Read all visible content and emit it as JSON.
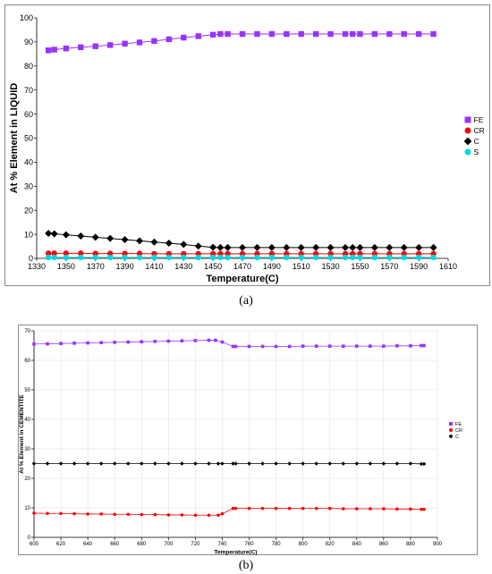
{
  "captions": [
    "(a)",
    "(b)"
  ],
  "colors": {
    "FE": "#9933ff",
    "CR": "#ff0000",
    "C": "#000000",
    "S": "#00d8e8",
    "frame": "#8a8a8a",
    "grid_b": "#e6e6e6"
  },
  "chart_data": [
    {
      "type": "line",
      "panel": "a",
      "xlabel": "Temperature(C)",
      "ylabel": "At % Element in LIQUID",
      "xlim": [
        1330,
        1610
      ],
      "ylim": [
        0,
        100
      ],
      "xticks": [
        1330,
        1350,
        1370,
        1390,
        1410,
        1430,
        1450,
        1470,
        1490,
        1510,
        1530,
        1550,
        1570,
        1590,
        1610
      ],
      "yticks": [
        0,
        10,
        20,
        30,
        40,
        50,
        60,
        70,
        80,
        90,
        100
      ],
      "legend_position": "right",
      "series": [
        {
          "name": "FE",
          "marker": "square",
          "points": [
            [
              1338,
              86.5
            ],
            [
              1342,
              86.8
            ],
            [
              1350,
              87.3
            ],
            [
              1360,
              87.8
            ],
            [
              1370,
              88.2
            ],
            [
              1380,
              88.7
            ],
            [
              1390,
              89.3
            ],
            [
              1400,
              89.8
            ],
            [
              1410,
              90.4
            ],
            [
              1420,
              91.1
            ],
            [
              1430,
              91.8
            ],
            [
              1440,
              92.4
            ],
            [
              1450,
              93.0
            ],
            [
              1455,
              93.3
            ],
            [
              1460,
              93.3
            ],
            [
              1470,
              93.3
            ],
            [
              1480,
              93.3
            ],
            [
              1490,
              93.3
            ],
            [
              1500,
              93.3
            ],
            [
              1510,
              93.3
            ],
            [
              1520,
              93.3
            ],
            [
              1530,
              93.3
            ],
            [
              1540,
              93.3
            ],
            [
              1545,
              93.3
            ],
            [
              1550,
              93.3
            ],
            [
              1560,
              93.3
            ],
            [
              1570,
              93.3
            ],
            [
              1580,
              93.3
            ],
            [
              1590,
              93.3
            ],
            [
              1600,
              93.3
            ]
          ]
        },
        {
          "name": "CR",
          "marker": "circle",
          "points": [
            [
              1338,
              2.1
            ],
            [
              1342,
              2.1
            ],
            [
              1350,
              2.1
            ],
            [
              1360,
              2.1
            ],
            [
              1370,
              2.0
            ],
            [
              1380,
              2.0
            ],
            [
              1390,
              2.0
            ],
            [
              1400,
              2.0
            ],
            [
              1410,
              1.9
            ],
            [
              1420,
              1.9
            ],
            [
              1430,
              1.9
            ],
            [
              1440,
              1.9
            ],
            [
              1450,
              1.9
            ],
            [
              1455,
              1.9
            ],
            [
              1460,
              1.9
            ],
            [
              1470,
              1.9
            ],
            [
              1480,
              1.9
            ],
            [
              1490,
              1.9
            ],
            [
              1500,
              1.9
            ],
            [
              1510,
              1.9
            ],
            [
              1520,
              1.9
            ],
            [
              1530,
              1.9
            ],
            [
              1540,
              1.9
            ],
            [
              1545,
              1.9
            ],
            [
              1550,
              1.9
            ],
            [
              1560,
              1.9
            ],
            [
              1570,
              1.9
            ],
            [
              1580,
              1.9
            ],
            [
              1590,
              1.9
            ],
            [
              1600,
              1.9
            ]
          ]
        },
        {
          "name": "C",
          "marker": "diamond",
          "points": [
            [
              1338,
              10.4
            ],
            [
              1342,
              10.2
            ],
            [
              1350,
              9.8
            ],
            [
              1360,
              9.3
            ],
            [
              1370,
              8.8
            ],
            [
              1380,
              8.3
            ],
            [
              1390,
              7.8
            ],
            [
              1400,
              7.3
            ],
            [
              1410,
              6.8
            ],
            [
              1420,
              6.3
            ],
            [
              1430,
              5.8
            ],
            [
              1440,
              5.1
            ],
            [
              1450,
              4.6
            ],
            [
              1455,
              4.5
            ],
            [
              1460,
              4.5
            ],
            [
              1470,
              4.5
            ],
            [
              1480,
              4.5
            ],
            [
              1490,
              4.5
            ],
            [
              1500,
              4.5
            ],
            [
              1510,
              4.5
            ],
            [
              1520,
              4.5
            ],
            [
              1530,
              4.5
            ],
            [
              1540,
              4.5
            ],
            [
              1545,
              4.5
            ],
            [
              1550,
              4.5
            ],
            [
              1560,
              4.5
            ],
            [
              1570,
              4.5
            ],
            [
              1580,
              4.5
            ],
            [
              1590,
              4.5
            ],
            [
              1600,
              4.5
            ]
          ]
        },
        {
          "name": "S",
          "marker": "circle",
          "points": [
            [
              1338,
              0.4
            ],
            [
              1342,
              0.4
            ],
            [
              1350,
              0.4
            ],
            [
              1360,
              0.4
            ],
            [
              1370,
              0.4
            ],
            [
              1380,
              0.4
            ],
            [
              1390,
              0.4
            ],
            [
              1400,
              0.4
            ],
            [
              1410,
              0.4
            ],
            [
              1420,
              0.4
            ],
            [
              1430,
              0.4
            ],
            [
              1440,
              0.4
            ],
            [
              1450,
              0.4
            ],
            [
              1455,
              0.4
            ],
            [
              1460,
              0.4
            ],
            [
              1470,
              0.4
            ],
            [
              1480,
              0.4
            ],
            [
              1490,
              0.4
            ],
            [
              1500,
              0.4
            ],
            [
              1510,
              0.4
            ],
            [
              1520,
              0.4
            ],
            [
              1530,
              0.4
            ],
            [
              1540,
              0.4
            ],
            [
              1545,
              0.4
            ],
            [
              1550,
              0.4
            ],
            [
              1560,
              0.4
            ],
            [
              1570,
              0.4
            ],
            [
              1580,
              0.4
            ],
            [
              1590,
              0.4
            ],
            [
              1600,
              0.4
            ]
          ]
        }
      ]
    },
    {
      "type": "line",
      "panel": "b",
      "xlabel": "Temperature(C)",
      "ylabel": "At % Element in CEMENTITE",
      "xlim": [
        600,
        900
      ],
      "ylim": [
        0,
        70
      ],
      "xticks": [
        600,
        620,
        640,
        660,
        680,
        700,
        720,
        740,
        760,
        780,
        800,
        820,
        840,
        860,
        880,
        900
      ],
      "yticks": [
        0,
        10,
        20,
        30,
        40,
        50,
        60,
        70
      ],
      "grid": true,
      "legend_position": "right",
      "series": [
        {
          "name": "FE",
          "marker": "square",
          "points": [
            [
              600,
              65.5
            ],
            [
              610,
              65.6
            ],
            [
              620,
              65.7
            ],
            [
              630,
              65.8
            ],
            [
              640,
              65.9
            ],
            [
              650,
              66.0
            ],
            [
              660,
              66.1
            ],
            [
              670,
              66.2
            ],
            [
              680,
              66.3
            ],
            [
              690,
              66.4
            ],
            [
              700,
              66.5
            ],
            [
              710,
              66.6
            ],
            [
              720,
              66.7
            ],
            [
              730,
              66.8
            ],
            [
              735,
              66.8
            ],
            [
              740,
              66.2
            ],
            [
              748,
              64.7
            ],
            [
              750,
              64.7
            ],
            [
              760,
              64.7
            ],
            [
              770,
              64.7
            ],
            [
              780,
              64.7
            ],
            [
              790,
              64.7
            ],
            [
              800,
              64.8
            ],
            [
              810,
              64.8
            ],
            [
              820,
              64.8
            ],
            [
              830,
              64.8
            ],
            [
              840,
              64.8
            ],
            [
              850,
              64.8
            ],
            [
              860,
              64.8
            ],
            [
              870,
              64.9
            ],
            [
              880,
              64.9
            ],
            [
              888,
              65.0
            ],
            [
              890,
              65.0
            ]
          ]
        },
        {
          "name": "CR",
          "marker": "circle",
          "points": [
            [
              600,
              8.2
            ],
            [
              610,
              8.1
            ],
            [
              620,
              8.1
            ],
            [
              630,
              8.0
            ],
            [
              640,
              7.9
            ],
            [
              650,
              7.9
            ],
            [
              660,
              7.8
            ],
            [
              670,
              7.8
            ],
            [
              680,
              7.7
            ],
            [
              690,
              7.7
            ],
            [
              700,
              7.6
            ],
            [
              710,
              7.6
            ],
            [
              720,
              7.5
            ],
            [
              730,
              7.5
            ],
            [
              737,
              7.5
            ],
            [
              740,
              8.0
            ],
            [
              748,
              9.8
            ],
            [
              750,
              9.8
            ],
            [
              760,
              9.8
            ],
            [
              770,
              9.8
            ],
            [
              780,
              9.8
            ],
            [
              790,
              9.8
            ],
            [
              800,
              9.8
            ],
            [
              810,
              9.8
            ],
            [
              820,
              9.8
            ],
            [
              830,
              9.7
            ],
            [
              840,
              9.7
            ],
            [
              850,
              9.7
            ],
            [
              860,
              9.7
            ],
            [
              870,
              9.6
            ],
            [
              880,
              9.6
            ],
            [
              888,
              9.5
            ],
            [
              890,
              9.5
            ]
          ]
        },
        {
          "name": "C",
          "marker": "diamond",
          "points": [
            [
              600,
              25.0
            ],
            [
              610,
              25.0
            ],
            [
              620,
              25.0
            ],
            [
              630,
              25.0
            ],
            [
              640,
              25.0
            ],
            [
              650,
              25.0
            ],
            [
              660,
              25.0
            ],
            [
              670,
              25.0
            ],
            [
              680,
              25.0
            ],
            [
              690,
              25.0
            ],
            [
              700,
              25.0
            ],
            [
              710,
              25.0
            ],
            [
              720,
              25.0
            ],
            [
              730,
              25.0
            ],
            [
              737,
              25.0
            ],
            [
              740,
              25.0
            ],
            [
              748,
              25.0
            ],
            [
              750,
              25.0
            ],
            [
              760,
              25.0
            ],
            [
              770,
              25.0
            ],
            [
              780,
              25.0
            ],
            [
              790,
              25.0
            ],
            [
              800,
              25.0
            ],
            [
              810,
              25.0
            ],
            [
              820,
              25.0
            ],
            [
              830,
              25.0
            ],
            [
              840,
              25.0
            ],
            [
              850,
              25.0
            ],
            [
              860,
              25.0
            ],
            [
              870,
              25.0
            ],
            [
              880,
              25.0
            ],
            [
              888,
              24.9
            ],
            [
              890,
              24.9
            ]
          ]
        }
      ]
    }
  ]
}
